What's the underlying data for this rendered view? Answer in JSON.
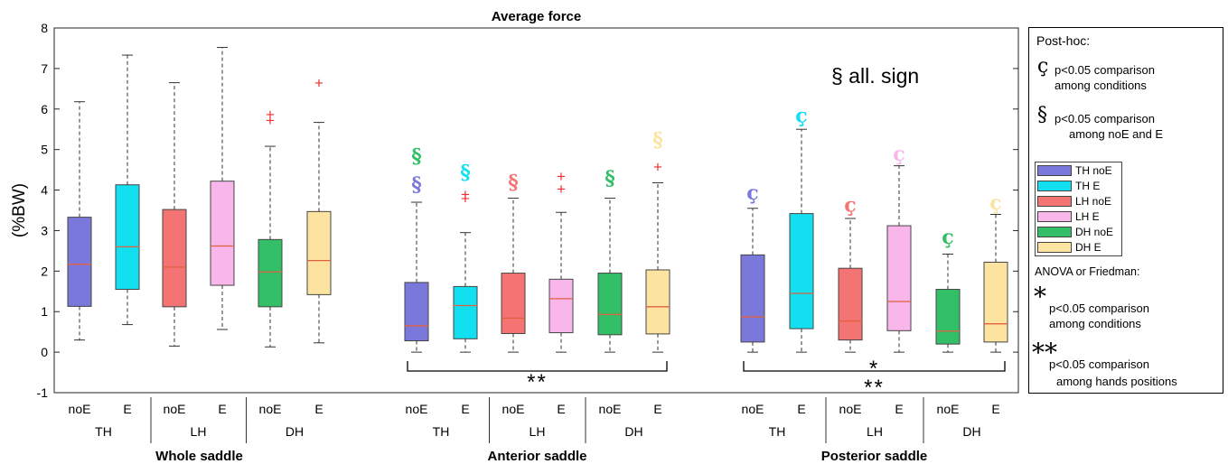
{
  "chart_data": {
    "type": "box",
    "title": "Average force",
    "ylabel": "(%BW)",
    "ylim": [
      -1,
      8
    ],
    "yticks": [
      -1,
      0,
      1,
      2,
      3,
      4,
      5,
      6,
      7,
      8
    ],
    "grid": false,
    "condition_colors": {
      "TH noE": "#7b78dc",
      "TH E": "#12dff0",
      "LH noE": "#f47474",
      "LH E": "#f9b6ea",
      "DH noE": "#33bf68",
      "DH E": "#fde3a0"
    },
    "median_color": "#e06040",
    "panels": [
      {
        "name": "Whole saddle",
        "groups": [
          "TH",
          "LH",
          "DH"
        ],
        "boxes": [
          {
            "group": "TH",
            "cond": "noE",
            "key": "TH noE",
            "whisker_low": 0.3,
            "q1": 1.13,
            "median": 2.17,
            "q3": 3.33,
            "whisker_high": 6.18,
            "outliers": [],
            "marks": []
          },
          {
            "group": "TH",
            "cond": "E",
            "key": "TH E",
            "whisker_low": 0.68,
            "q1": 1.55,
            "median": 2.6,
            "q3": 4.13,
            "whisker_high": 7.33,
            "outliers": [],
            "marks": []
          },
          {
            "group": "LH",
            "cond": "noE",
            "key": "LH noE",
            "whisker_low": 0.15,
            "q1": 1.12,
            "median": 2.1,
            "q3": 3.52,
            "whisker_high": 6.65,
            "outliers": [],
            "marks": []
          },
          {
            "group": "LH",
            "cond": "E",
            "key": "LH E",
            "whisker_low": 0.56,
            "q1": 1.65,
            "median": 2.62,
            "q3": 4.22,
            "whisker_high": 7.52,
            "outliers": [],
            "marks": []
          },
          {
            "group": "DH",
            "cond": "noE",
            "key": "DH noE",
            "whisker_low": 0.13,
            "q1": 1.12,
            "median": 1.98,
            "q3": 2.78,
            "whisker_high": 5.08,
            "outliers": [
              5.73,
              5.87
            ],
            "marks": []
          },
          {
            "group": "DH",
            "cond": "E",
            "key": "DH E",
            "whisker_low": 0.23,
            "q1": 1.42,
            "median": 2.26,
            "q3": 3.47,
            "whisker_high": 5.67,
            "outliers": [
              6.65
            ],
            "marks": []
          }
        ],
        "annotation": ""
      },
      {
        "name": "Anterior saddle",
        "groups": [
          "TH",
          "LH",
          "DH"
        ],
        "boxes": [
          {
            "group": "TH",
            "cond": "noE",
            "key": "TH noE",
            "whisker_low": 0.0,
            "q1": 0.28,
            "median": 0.65,
            "q3": 1.72,
            "whisker_high": 3.7,
            "outliers": [],
            "marks": [
              {
                "sym": "§",
                "y": 4.15
              },
              {
                "sym": "§",
                "y": 4.85
              }
            ]
          },
          {
            "group": "TH",
            "cond": "E",
            "key": "TH E",
            "whisker_low": 0.0,
            "q1": 0.33,
            "median": 1.15,
            "q3": 1.62,
            "whisker_high": 2.95,
            "outliers": [
              3.8,
              3.9
            ],
            "marks": [
              {
                "sym": "§",
                "y": 4.45
              }
            ]
          },
          {
            "group": "LH",
            "cond": "noE",
            "key": "LH noE",
            "whisker_low": 0.0,
            "q1": 0.46,
            "median": 0.84,
            "q3": 1.95,
            "whisker_high": 3.8,
            "outliers": [],
            "marks": [
              {
                "sym": "§",
                "y": 4.2
              }
            ]
          },
          {
            "group": "LH",
            "cond": "E",
            "key": "LH E",
            "whisker_low": 0.0,
            "q1": 0.48,
            "median": 1.32,
            "q3": 1.8,
            "whisker_high": 3.45,
            "outliers": [
              4.03,
              4.35
            ],
            "marks": []
          },
          {
            "group": "DH",
            "cond": "noE",
            "key": "DH noE",
            "whisker_low": 0.0,
            "q1": 0.43,
            "median": 0.93,
            "q3": 1.95,
            "whisker_high": 3.8,
            "outliers": [],
            "marks": [
              {
                "sym": "§",
                "y": 4.3
              }
            ]
          },
          {
            "group": "DH",
            "cond": "E",
            "key": "DH E",
            "whisker_low": 0.0,
            "q1": 0.45,
            "median": 1.12,
            "q3": 2.03,
            "whisker_high": 4.18,
            "outliers": [
              4.58
            ],
            "marks": [
              {
                "sym": "§",
                "y": 5.25
              }
            ]
          }
        ],
        "annotation": "**"
      },
      {
        "name": "Posterior saddle",
        "groups": [
          "TH",
          "LH",
          "DH"
        ],
        "boxes": [
          {
            "group": "TH",
            "cond": "noE",
            "key": "TH noE",
            "whisker_low": 0.0,
            "q1": 0.25,
            "median": 0.87,
            "q3": 2.4,
            "whisker_high": 3.55,
            "outliers": [],
            "marks": [
              {
                "sym": "ç",
                "y": 3.95
              }
            ]
          },
          {
            "group": "TH",
            "cond": "E",
            "key": "TH E",
            "whisker_low": 0.0,
            "q1": 0.58,
            "median": 1.45,
            "q3": 3.42,
            "whisker_high": 5.5,
            "outliers": [],
            "marks": [
              {
                "sym": "ç",
                "y": 5.85
              }
            ]
          },
          {
            "group": "LH",
            "cond": "noE",
            "key": "LH noE",
            "whisker_low": 0.0,
            "q1": 0.3,
            "median": 0.77,
            "q3": 2.07,
            "whisker_high": 3.3,
            "outliers": [],
            "marks": [
              {
                "sym": "ç",
                "y": 3.65
              }
            ]
          },
          {
            "group": "LH",
            "cond": "E",
            "key": "LH E",
            "whisker_low": 0.0,
            "q1": 0.53,
            "median": 1.25,
            "q3": 3.12,
            "whisker_high": 4.6,
            "outliers": [],
            "marks": [
              {
                "sym": "ç",
                "y": 4.9
              }
            ]
          },
          {
            "group": "DH",
            "cond": "noE",
            "key": "DH noE",
            "whisker_low": 0.0,
            "q1": 0.2,
            "median": 0.52,
            "q3": 1.55,
            "whisker_high": 2.42,
            "outliers": [],
            "marks": [
              {
                "sym": "ç",
                "y": 2.85
              }
            ]
          },
          {
            "group": "DH",
            "cond": "E",
            "key": "DH E",
            "whisker_low": 0.0,
            "q1": 0.25,
            "median": 0.7,
            "q3": 2.22,
            "whisker_high": 3.4,
            "outliers": [],
            "marks": [
              {
                "sym": "ç",
                "y": 3.7
              }
            ]
          }
        ],
        "annotation": "*\n**"
      }
    ],
    "annotations": [
      "§ all. sign"
    ]
  },
  "legend_panel": {
    "posthoc_title": "Post-hoc:",
    "c_symbol": "ç",
    "c_line1": "p<0.05 comparison",
    "c_line2": "among conditions",
    "s_symbol": "§",
    "s_line1": "p<0.05 comparison",
    "s_line2": "among noE and E",
    "legend_items": [
      "TH noE",
      "TH E",
      "LH noE",
      "LH E",
      "DH noE",
      "DH E"
    ],
    "anova_title": "ANOVA or Friedman:",
    "one_star": "*",
    "one_line1": "p<0.05 comparison",
    "one_line2": "among conditions",
    "two_star": "**",
    "two_line1": "p<0.05 comparison",
    "two_line2": "among hands positions"
  }
}
